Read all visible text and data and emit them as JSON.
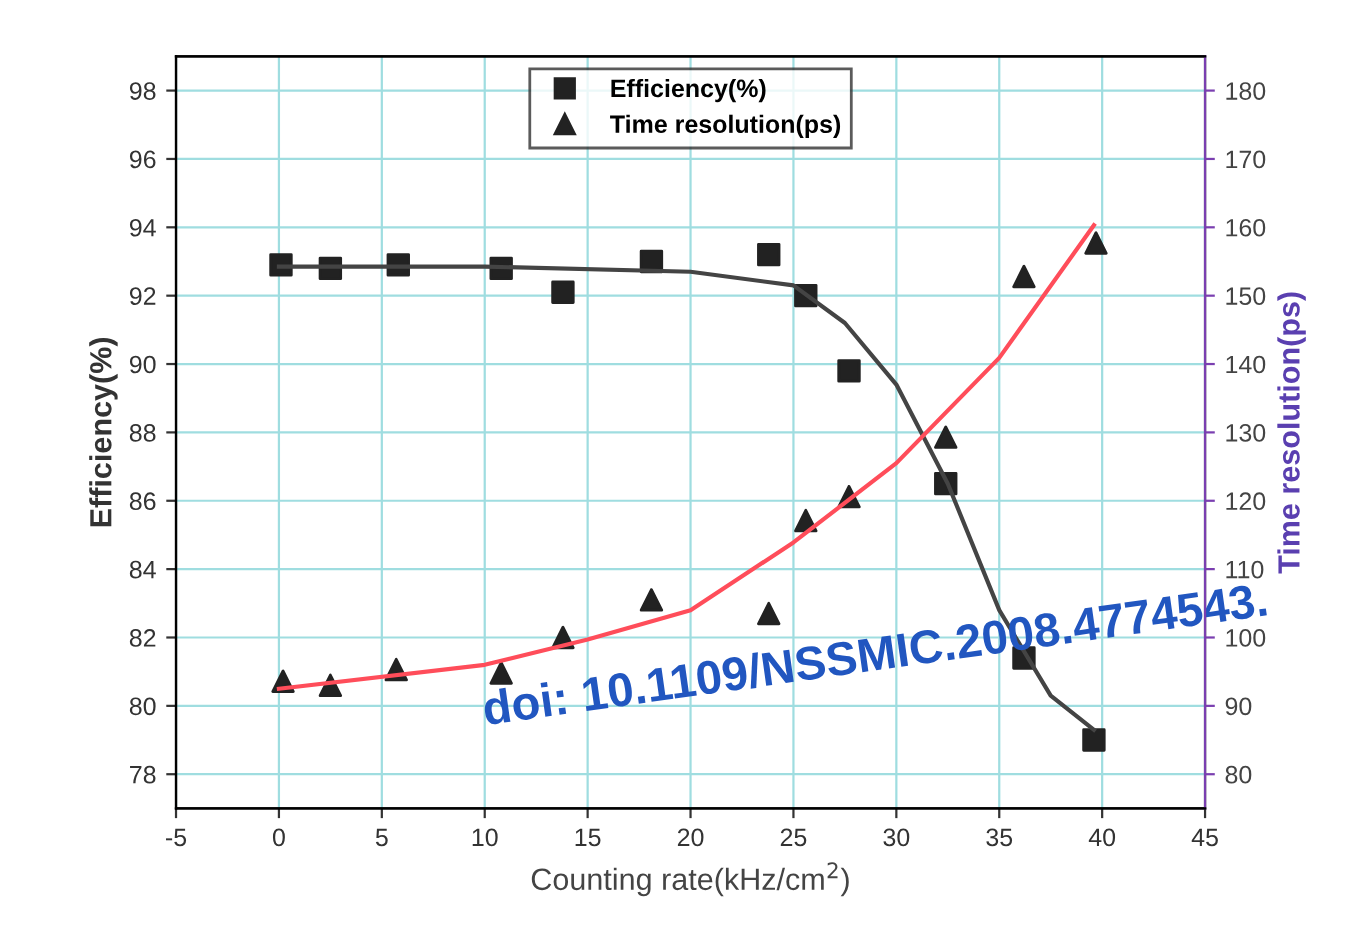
{
  "chart_data": {
    "type": "scatter",
    "xlabel": "Counting rate(kHz/cm$^{2}$)",
    "ylabel": "Efficiency(%)",
    "y2label": "Time resolution(ps)",
    "xlim": [
      -5,
      45
    ],
    "xticks": [
      -5,
      0,
      5,
      10,
      15,
      20,
      25,
      30,
      35,
      40,
      45
    ],
    "ylim": [
      77,
      99
    ],
    "yticks": [
      78,
      80,
      82,
      84,
      86,
      88,
      90,
      92,
      94,
      96,
      98
    ],
    "y2lim": [
      75,
      185
    ],
    "y2ticks": [
      80,
      90,
      100,
      110,
      120,
      130,
      140,
      150,
      160,
      170,
      180
    ],
    "grid": true,
    "legend": "top",
    "annotations": [
      "doi: 10.1109/NSSMIC.2008.4774543."
    ],
    "series": [
      {
        "name": "Efficiency(%)",
        "marker": "square",
        "color": "#222222",
        "x": [
          0.1,
          2.5,
          5.8,
          10.8,
          13.8,
          18.1,
          23.8,
          25.6,
          27.7,
          32.4,
          36.2,
          39.6
        ],
        "values": [
          92.9,
          92.8,
          92.9,
          92.8,
          92.1,
          93.0,
          93.2,
          92.0,
          89.8,
          86.5,
          81.4,
          79.0
        ]
      },
      {
        "name": "Time resolution(ps)",
        "type": "scatter",
        "marker": "triangle",
        "axis": "y2",
        "color": "#222222",
        "x": [
          0.2,
          2.5,
          5.7,
          10.8,
          13.8,
          18.1,
          23.8,
          25.6,
          27.7,
          32.4,
          36.2,
          39.7
        ],
        "values": [
          93.6,
          93.0,
          95.3,
          94.8,
          100.0,
          105.5,
          103.5,
          117.1,
          120.6,
          129.3,
          152.8,
          157.7
        ]
      },
      {
        "type": "line",
        "marker": "none",
        "color": "#444444",
        "x": [
          0,
          10,
          20,
          25,
          27.5,
          30,
          32.5,
          35,
          37.5,
          39.6
        ],
        "values": [
          92.85,
          92.85,
          92.7,
          92.3,
          91.2,
          89.4,
          86.5,
          82.8,
          80.3,
          79.3
        ]
      },
      {
        "type": "line",
        "marker": "none",
        "axis": "y2",
        "color": "#ff4d5a",
        "x": [
          0,
          10,
          15,
          20,
          25,
          30,
          35,
          39.6
        ],
        "values": [
          92.5,
          96.0,
          99.7,
          104.0,
          113.9,
          125.5,
          140.9,
          160.3
        ]
      }
    ]
  }
}
